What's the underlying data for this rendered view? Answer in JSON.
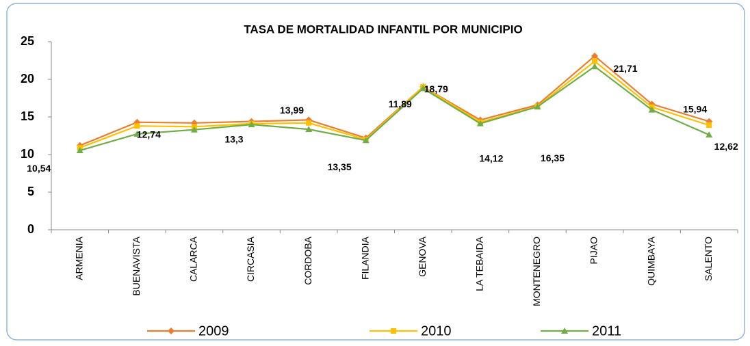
{
  "chart_data": {
    "type": "line",
    "title": "TASA DE MORTALIDAD INFANTIL POR MUNICIPIO",
    "categories": [
      "ARMENIA",
      "BUENAVISTA",
      "CALARCA",
      "CIRCASIA",
      "CORDOBA",
      "FILANDIA",
      "GENOVA",
      "LA TEBAIDA",
      "MONTENEGRO",
      "PIJAO",
      "QUIMBAYA",
      "SALENTO"
    ],
    "series": [
      {
        "name": "2009",
        "color": "#e97d31",
        "marker": "diamond",
        "values": [
          11.2,
          14.3,
          14.2,
          14.4,
          14.6,
          12.2,
          19.0,
          14.6,
          16.6,
          23.1,
          16.7,
          14.4
        ]
      },
      {
        "name": "2010",
        "color": "#ffc000",
        "marker": "square",
        "values": [
          10.9,
          13.8,
          13.7,
          14.1,
          14.2,
          12.0,
          19.0,
          14.3,
          16.4,
          22.4,
          16.3,
          13.9
        ]
      },
      {
        "name": "2011",
        "color": "#70ad47",
        "marker": "triangle",
        "values": [
          10.54,
          12.74,
          13.3,
          13.99,
          13.35,
          11.89,
          18.79,
          14.12,
          16.35,
          21.71,
          15.94,
          12.62
        ],
        "value_labels": [
          "10,54",
          "12,74",
          "13,3",
          "13,99",
          "13,35",
          "11,89",
          "18,79",
          "14,12",
          "16,35",
          "21,71",
          "15,94",
          "12,62"
        ]
      }
    ],
    "ylim": [
      0,
      25
    ],
    "yticks": [
      0,
      5,
      10,
      15,
      20,
      25
    ],
    "legend": "bottom"
  }
}
